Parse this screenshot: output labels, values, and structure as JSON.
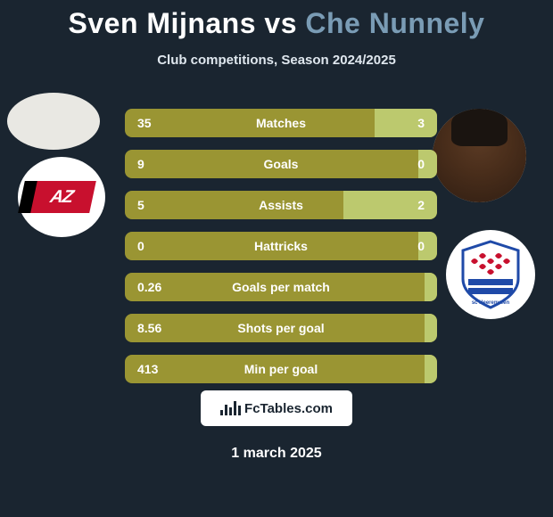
{
  "title": {
    "player1": "Sven Mijnans",
    "vs": "vs",
    "player2": "Che Nunnely"
  },
  "subtitle": "Club competitions, Season 2024/2025",
  "colors": {
    "background": "#1a2530",
    "bar_base": "#9a9533",
    "bar_fill2": "#bcc96e",
    "player2_title": "#7a9cb5"
  },
  "club_left": {
    "name": "AZ",
    "text": "AZ"
  },
  "club_right": {
    "name": "SC Heerenveen"
  },
  "stats": [
    {
      "label": "Matches",
      "p1": "35",
      "p2": "3",
      "p2_share": 0.2
    },
    {
      "label": "Goals",
      "p1": "9",
      "p2": "0",
      "p2_share": 0.06
    },
    {
      "label": "Assists",
      "p1": "5",
      "p2": "2",
      "p2_share": 0.3
    },
    {
      "label": "Hattricks",
      "p1": "0",
      "p2": "0",
      "p2_share": 0.06
    },
    {
      "label": "Goals per match",
      "p1": "0.26",
      "p2": "",
      "p2_share": 0.04
    },
    {
      "label": "Shots per goal",
      "p1": "8.56",
      "p2": "",
      "p2_share": 0.04
    },
    {
      "label": "Min per goal",
      "p1": "413",
      "p2": "",
      "p2_share": 0.04
    }
  ],
  "footer": {
    "site": "FcTables.com",
    "date": "1 march 2025"
  }
}
